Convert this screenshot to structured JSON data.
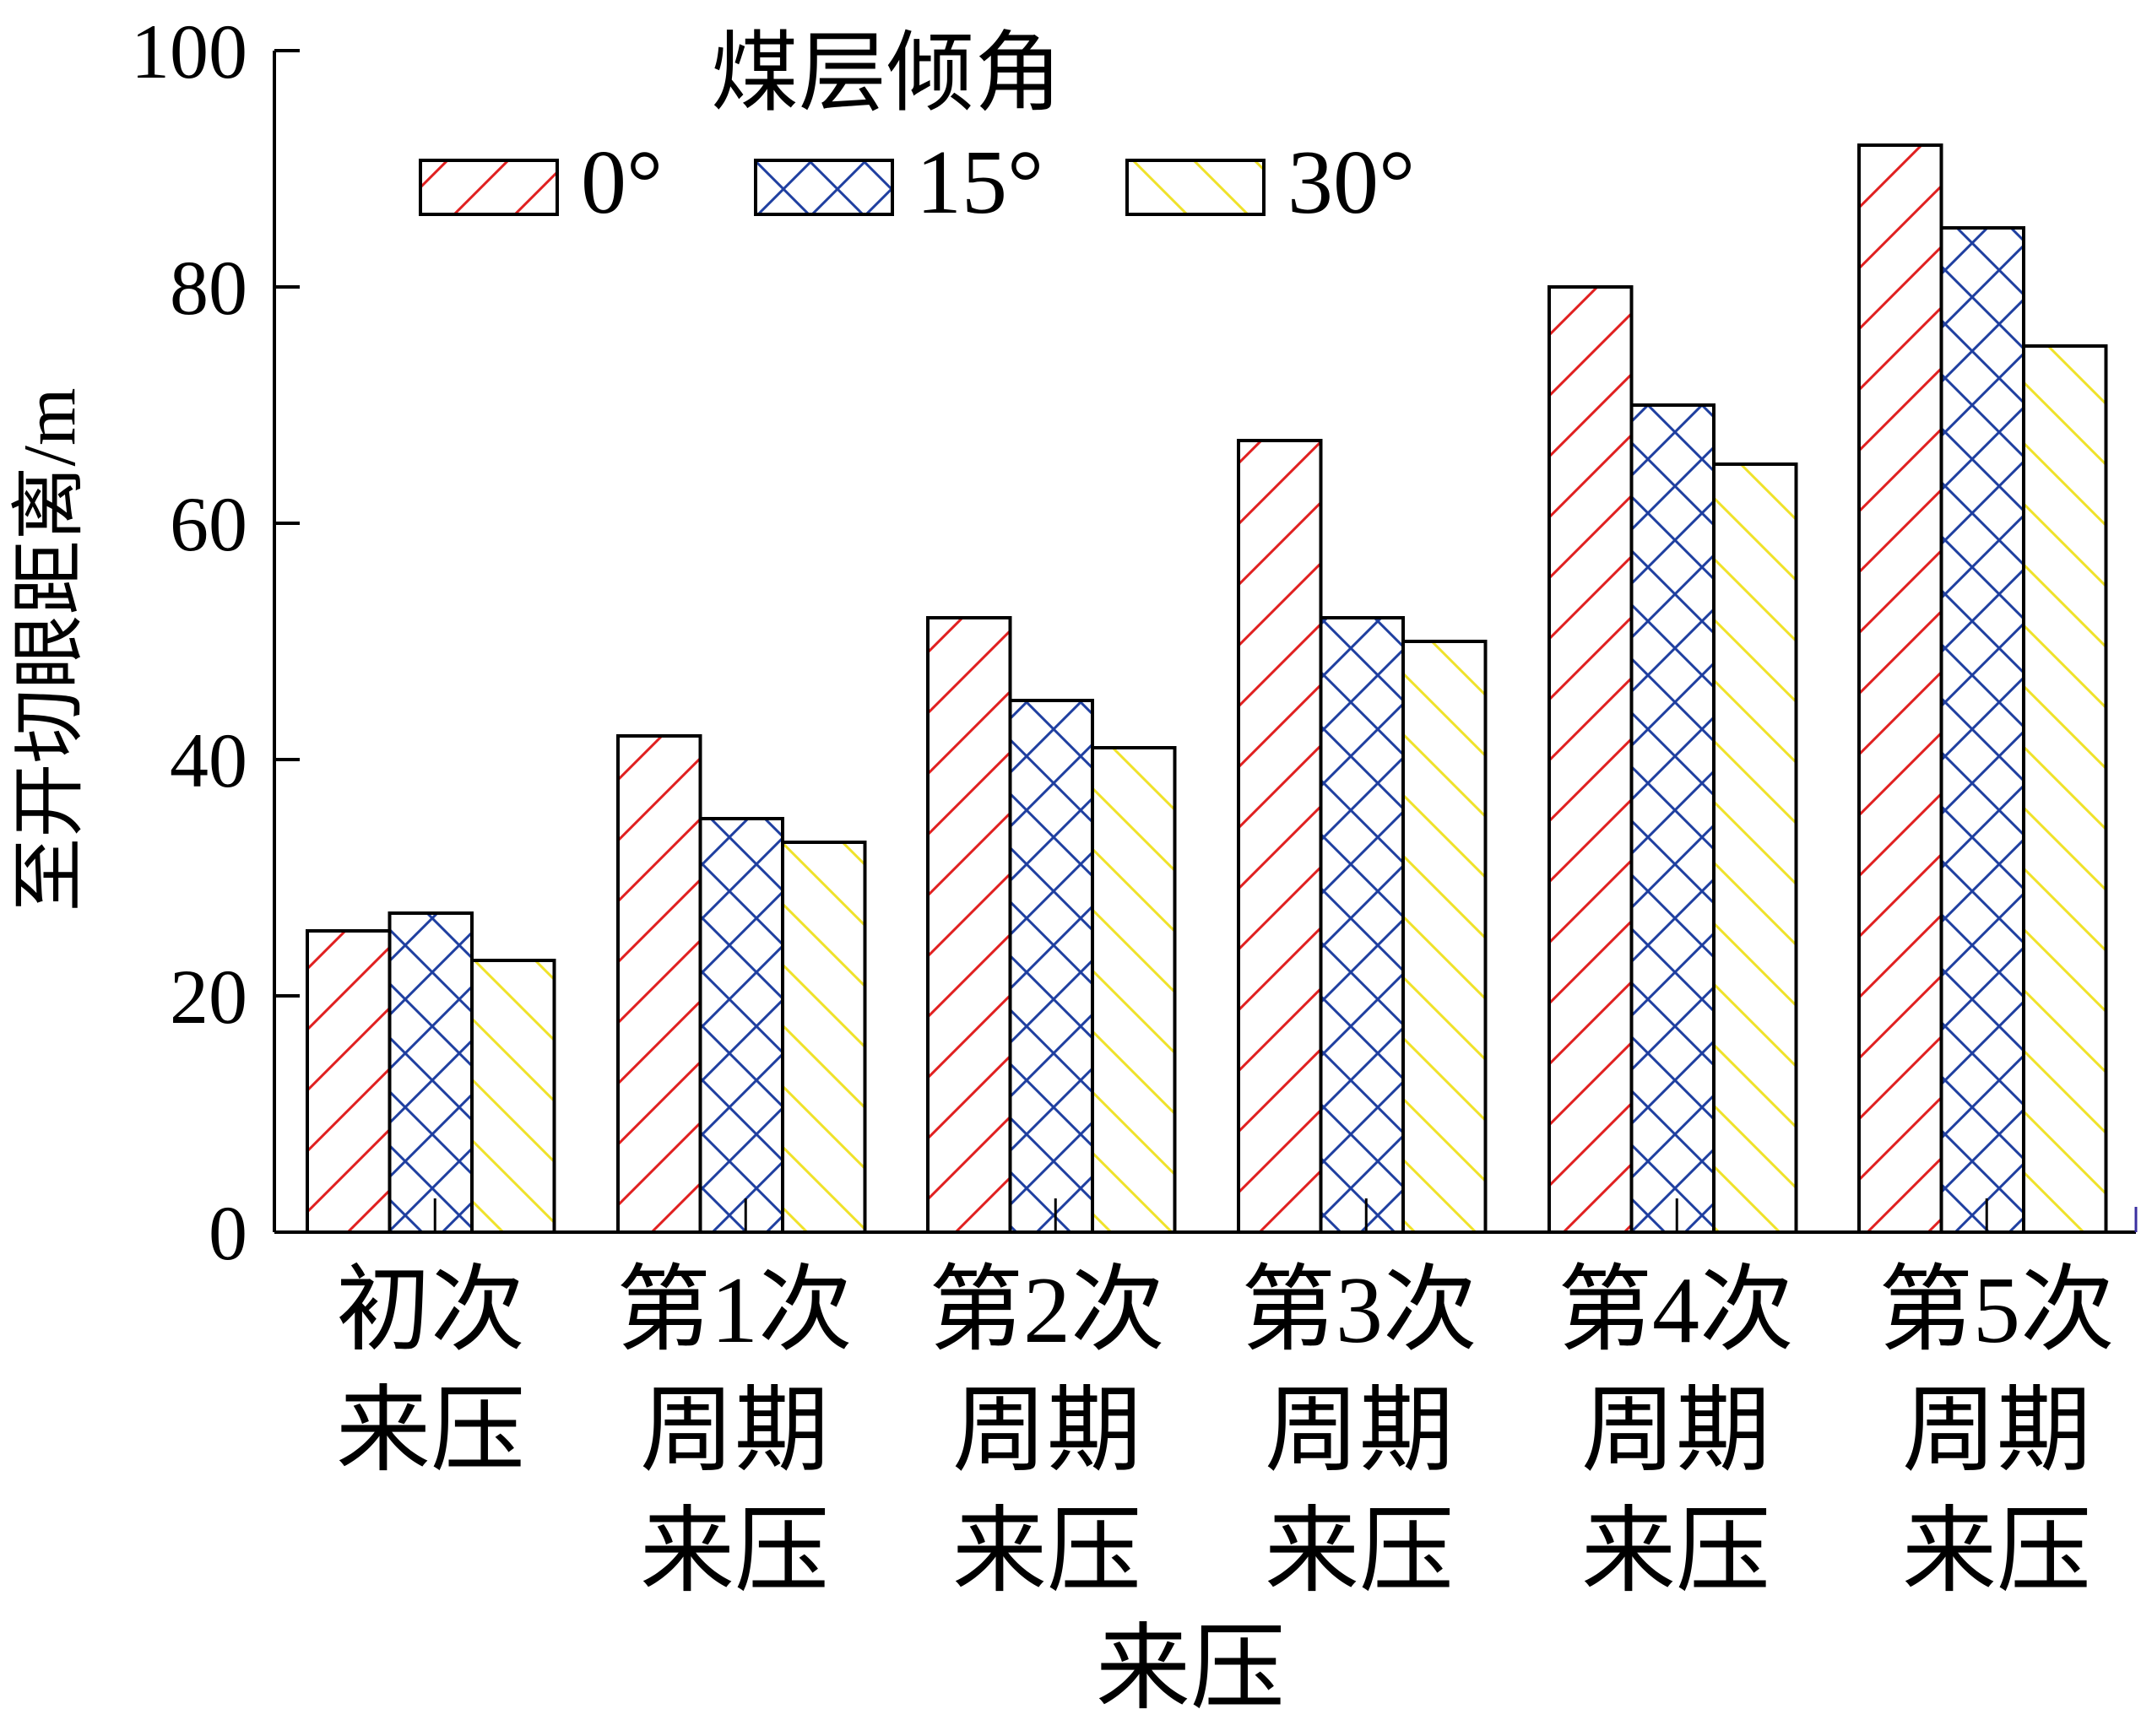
{
  "chart_data": {
    "type": "bar",
    "ylabel": "至开切眼距离/m",
    "xlabel": "来压",
    "ylim": [
      0,
      100
    ],
    "yticks": [
      "0",
      "20",
      "40",
      "60",
      "80",
      "100"
    ],
    "ytick_values": [
      0,
      20,
      40,
      60,
      80,
      100
    ],
    "categories": [
      [
        "初次",
        "来压"
      ],
      [
        "第1次",
        "周期",
        "来压"
      ],
      [
        "第2次",
        "周期",
        "来压"
      ],
      [
        "第3次",
        "周期",
        "来压"
      ],
      [
        "第4次",
        "周期",
        "来压"
      ],
      [
        "第5次",
        "周期",
        "来压"
      ]
    ],
    "legend": {
      "title": "煤层倾角",
      "placement": "top-center"
    },
    "series": [
      {
        "name": "0°",
        "values": [
          25.5,
          42,
          52,
          67,
          80,
          92
        ],
        "color": "#e02020",
        "pattern": "forward-diagonal"
      },
      {
        "name": "15°",
        "values": [
          27,
          35,
          45,
          52,
          70,
          85
        ],
        "color": "#1f3fa0",
        "pattern": "crosshatch"
      },
      {
        "name": "30°",
        "values": [
          23,
          33,
          41,
          50,
          65,
          75
        ],
        "color": "#f0e020",
        "pattern": "back-diagonal"
      }
    ]
  }
}
